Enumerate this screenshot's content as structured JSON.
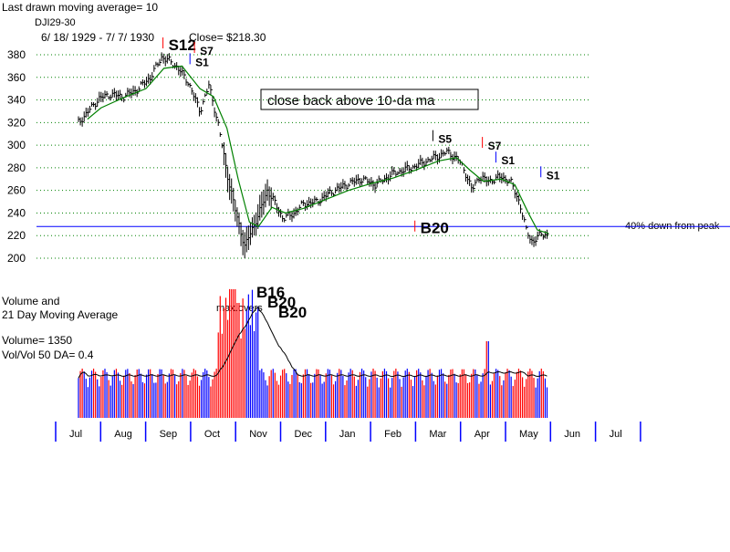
{
  "chart_data": {
    "type": "line",
    "header": {
      "title": "Last drawn moving average= 10",
      "symbol": "DJI29-30",
      "date_range": "6/ 18/ 1929 -  7/ 7/ 1930",
      "close": "Close= $218.30"
    },
    "y_ticks": [
      200,
      220,
      240,
      260,
      280,
      300,
      320,
      340,
      360,
      380
    ],
    "ylim": [
      190,
      390
    ],
    "months": [
      "Jul",
      "Aug",
      "Sep",
      "Oct",
      "Nov",
      "Dec",
      "Jan",
      "Feb",
      "Mar",
      "Apr",
      "May",
      "Jun",
      "Jul"
    ],
    "price_series": [
      {
        "t": 0,
        "v": 320
      },
      {
        "t": 0.2,
        "v": 329
      },
      {
        "t": 0.45,
        "v": 341
      },
      {
        "t": 0.7,
        "v": 345
      },
      {
        "t": 1.0,
        "v": 343
      },
      {
        "t": 1.3,
        "v": 349
      },
      {
        "t": 1.6,
        "v": 360
      },
      {
        "t": 1.85,
        "v": 378
      },
      {
        "t": 2.0,
        "v": 375
      },
      {
        "t": 2.2,
        "v": 369
      },
      {
        "t": 2.45,
        "v": 355
      },
      {
        "t": 2.7,
        "v": 330
      },
      {
        "t": 2.9,
        "v": 353
      },
      {
        "t": 3.1,
        "v": 320
      },
      {
        "t": 3.3,
        "v": 276
      },
      {
        "t": 3.5,
        "v": 240
      },
      {
        "t": 3.7,
        "v": 210
      },
      {
        "t": 3.85,
        "v": 225
      },
      {
        "t": 4.0,
        "v": 238
      },
      {
        "t": 4.2,
        "v": 260
      },
      {
        "t": 4.35,
        "v": 250
      },
      {
        "t": 4.55,
        "v": 235
      },
      {
        "t": 4.8,
        "v": 240
      },
      {
        "t": 5.0,
        "v": 248
      },
      {
        "t": 5.3,
        "v": 250
      },
      {
        "t": 5.6,
        "v": 258
      },
      {
        "t": 6.0,
        "v": 266
      },
      {
        "t": 6.3,
        "v": 270
      },
      {
        "t": 6.6,
        "v": 265
      },
      {
        "t": 7.0,
        "v": 275
      },
      {
        "t": 7.4,
        "v": 280
      },
      {
        "t": 7.8,
        "v": 287
      },
      {
        "t": 8.2,
        "v": 294
      },
      {
        "t": 8.45,
        "v": 287
      },
      {
        "t": 8.6,
        "v": 276
      },
      {
        "t": 8.75,
        "v": 260
      },
      {
        "t": 8.9,
        "v": 272
      },
      {
        "t": 9.1,
        "v": 268
      },
      {
        "t": 9.4,
        "v": 272
      },
      {
        "t": 9.6,
        "v": 268
      },
      {
        "t": 9.8,
        "v": 250
      },
      {
        "t": 9.95,
        "v": 225
      },
      {
        "t": 10.1,
        "v": 214
      },
      {
        "t": 10.3,
        "v": 222
      },
      {
        "t": 10.45,
        "v": 220
      }
    ],
    "ma_series": [
      {
        "t": 0.2,
        "v": 323
      },
      {
        "t": 0.5,
        "v": 333
      },
      {
        "t": 1.0,
        "v": 342
      },
      {
        "t": 1.5,
        "v": 350
      },
      {
        "t": 1.9,
        "v": 368
      },
      {
        "t": 2.3,
        "v": 370
      },
      {
        "t": 2.7,
        "v": 350
      },
      {
        "t": 3.0,
        "v": 343
      },
      {
        "t": 3.3,
        "v": 315
      },
      {
        "t": 3.55,
        "v": 270
      },
      {
        "t": 3.8,
        "v": 232
      },
      {
        "t": 4.0,
        "v": 228
      },
      {
        "t": 4.3,
        "v": 245
      },
      {
        "t": 4.6,
        "v": 240
      },
      {
        "t": 5.0,
        "v": 244
      },
      {
        "t": 5.5,
        "v": 252
      },
      {
        "t": 6.0,
        "v": 260
      },
      {
        "t": 6.5,
        "v": 266
      },
      {
        "t": 7.0,
        "v": 271
      },
      {
        "t": 7.5,
        "v": 278
      },
      {
        "t": 8.0,
        "v": 286
      },
      {
        "t": 8.4,
        "v": 289
      },
      {
        "t": 8.7,
        "v": 278
      },
      {
        "t": 9.0,
        "v": 268
      },
      {
        "t": 9.4,
        "v": 270
      },
      {
        "t": 9.7,
        "v": 265
      },
      {
        "t": 10.0,
        "v": 240
      },
      {
        "t": 10.2,
        "v": 225
      },
      {
        "t": 10.45,
        "v": 222
      }
    ],
    "reference_line": {
      "value": 228,
      "label": "40% down from peak"
    },
    "price_signals": [
      {
        "text": "S12",
        "t": 2.0,
        "v": 384,
        "color": "#ff0000"
      },
      {
        "text": "S7",
        "t": 2.7,
        "v": 380,
        "color": "#ff0000"
      },
      {
        "text": "S1",
        "t": 2.6,
        "v": 370,
        "color": "#0000ff"
      },
      {
        "text": "S5",
        "t": 8.0,
        "v": 302,
        "color": "#000000"
      },
      {
        "text": "S7",
        "t": 9.1,
        "v": 296,
        "color": "#ff0000"
      },
      {
        "text": "S1",
        "t": 9.4,
        "v": 283,
        "color": "#0000ff"
      },
      {
        "text": "S1",
        "t": 10.4,
        "v": 270,
        "color": "#0000ff"
      },
      {
        "text": "B20",
        "t": 7.6,
        "v": 222,
        "color": "#ff0000"
      }
    ],
    "annotation": "close back above 10-da ma",
    "volume": {
      "label_line1": "Volume and",
      "label_line2": "21 Day Moving Average",
      "volume_text": "Volume= 1350",
      "ratio_text": "Vol/Vol 50 DA= 0.4",
      "max_label": "max.overs",
      "max_level": 2.4,
      "overlay_signals": [
        "B16",
        "B20",
        "B20"
      ]
    }
  },
  "colors": {
    "grid": "#008000",
    "ma": "#008000",
    "reference": "#0000ff",
    "up_bar": "#0000ff",
    "down_bar": "#ff0000",
    "axis": "#0000ff"
  }
}
